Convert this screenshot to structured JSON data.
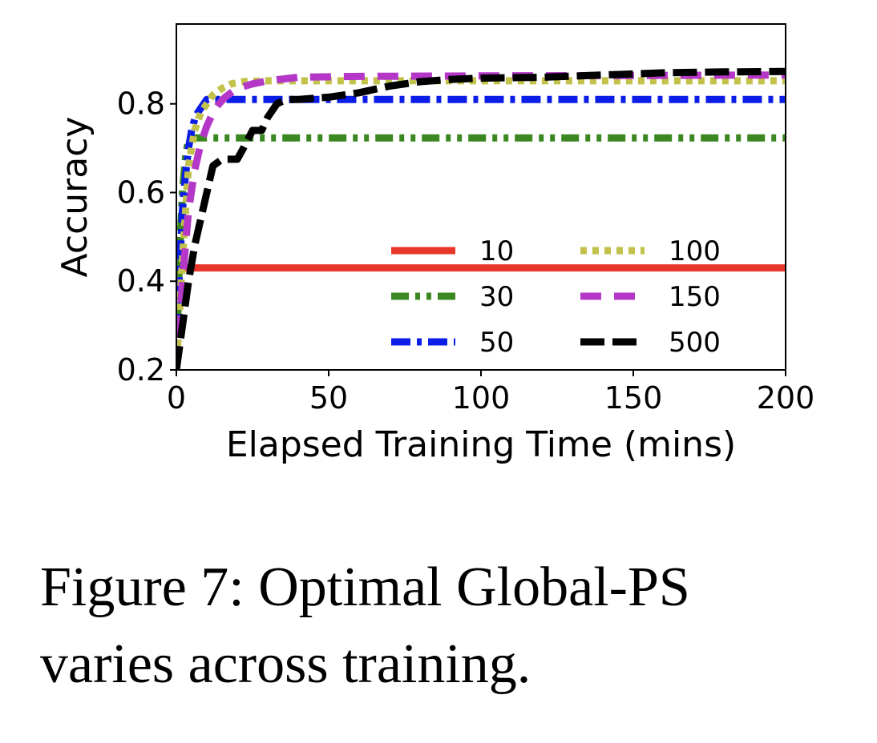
{
  "chart_data": {
    "type": "line",
    "title": "",
    "xlabel": "Elapsed Training Time (mins)",
    "ylabel": "Accuracy",
    "xlim": [
      0,
      200
    ],
    "ylim": [
      0.2,
      0.98
    ],
    "xticks": [
      0,
      50,
      100,
      150,
      200
    ],
    "yticks": [
      0.2,
      0.4,
      0.6,
      0.8
    ],
    "ytick_labels": [
      "0.2",
      "0.4",
      "0.6",
      "0.8"
    ],
    "xtick_labels": [
      "0",
      "50",
      "100",
      "150",
      "200"
    ],
    "grid": false,
    "legend": {
      "placement": "lower-right",
      "columns": 2
    },
    "series": [
      {
        "name": "10",
        "color": "#e8372a",
        "linestyle": "solid",
        "x": [
          0,
          200
        ],
        "y": [
          0.43,
          0.43
        ]
      },
      {
        "name": "30",
        "color": "#3b8722",
        "linestyle": "dashdotdot",
        "x": [
          0,
          1,
          2,
          3,
          4,
          5,
          8,
          200
        ],
        "y": [
          0.2,
          0.45,
          0.6,
          0.68,
          0.72,
          0.723,
          0.723,
          0.723
        ]
      },
      {
        "name": "50",
        "color": "#0c1de8",
        "linestyle": "dashdot",
        "x": [
          0,
          1,
          2,
          3,
          4,
          5,
          6,
          7,
          8,
          10,
          200
        ],
        "y": [
          0.2,
          0.42,
          0.56,
          0.64,
          0.7,
          0.74,
          0.765,
          0.78,
          0.79,
          0.81,
          0.81
        ]
      },
      {
        "name": "100",
        "color": "#c2c24a",
        "linestyle": "dotted",
        "x": [
          0,
          2,
          4,
          6,
          8,
          10,
          12,
          15,
          18,
          22,
          30,
          200
        ],
        "y": [
          0.2,
          0.45,
          0.66,
          0.74,
          0.78,
          0.8,
          0.82,
          0.835,
          0.845,
          0.85,
          0.852,
          0.852
        ]
      },
      {
        "name": "150",
        "color": "#b437c8",
        "linestyle": "dashed",
        "x": [
          0,
          2,
          4,
          6,
          8,
          10,
          12,
          14,
          16,
          18,
          20,
          25,
          30,
          40,
          60,
          100,
          200
        ],
        "y": [
          0.2,
          0.4,
          0.56,
          0.65,
          0.71,
          0.75,
          0.78,
          0.8,
          0.815,
          0.825,
          0.835,
          0.845,
          0.852,
          0.86,
          0.862,
          0.863,
          0.865
        ]
      },
      {
        "name": "500",
        "color": "#000000",
        "linestyle": "dashed",
        "x": [
          0,
          2,
          4,
          6,
          8,
          10,
          12,
          15,
          20,
          22,
          25,
          28,
          30,
          33,
          36,
          40,
          50,
          60,
          70,
          80,
          90,
          100,
          120,
          140,
          160,
          180,
          200
        ],
        "y": [
          0.2,
          0.3,
          0.4,
          0.48,
          0.54,
          0.6,
          0.66,
          0.675,
          0.675,
          0.7,
          0.74,
          0.74,
          0.77,
          0.8,
          0.81,
          0.81,
          0.815,
          0.825,
          0.84,
          0.85,
          0.855,
          0.858,
          0.86,
          0.865,
          0.87,
          0.872,
          0.873
        ]
      }
    ]
  },
  "caption": {
    "line1": "Figure 7: Optimal Global-PS",
    "line2": "varies across training."
  }
}
